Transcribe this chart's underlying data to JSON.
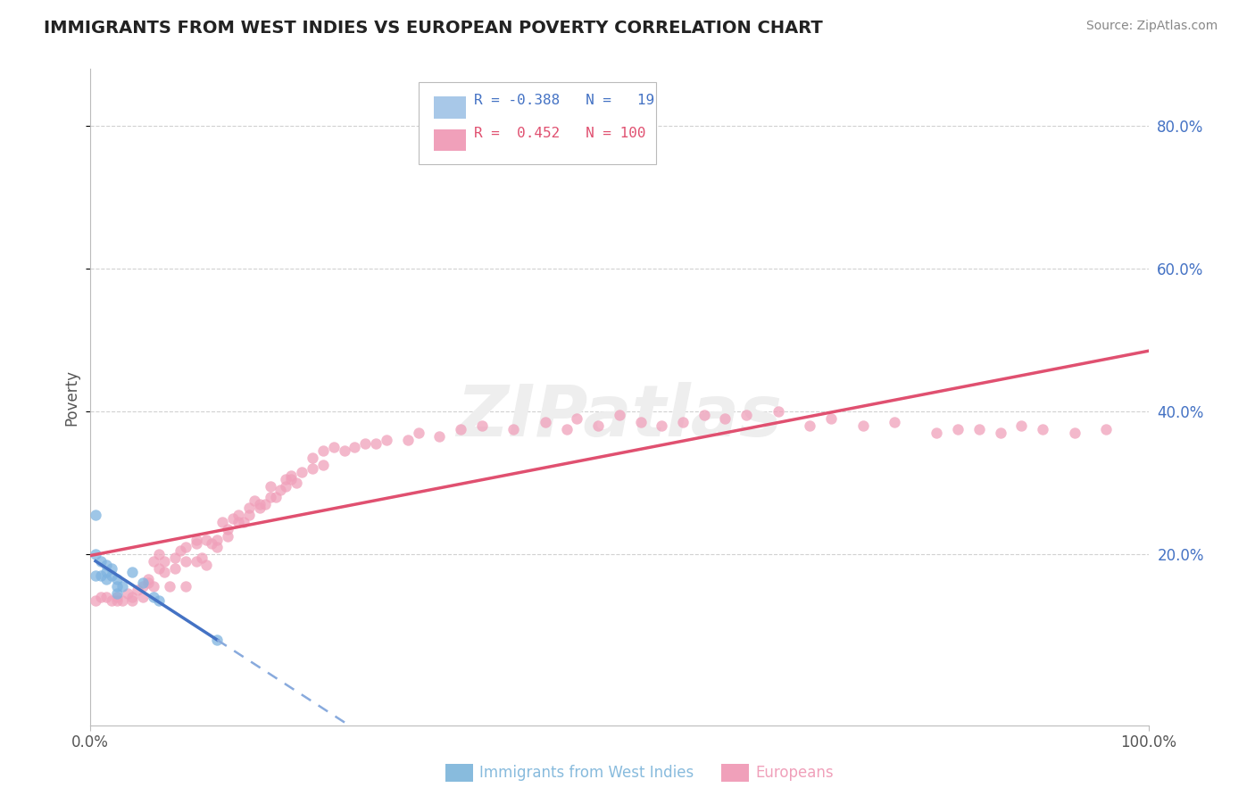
{
  "title": "IMMIGRANTS FROM WEST INDIES VS EUROPEAN POVERTY CORRELATION CHART",
  "source": "Source: ZipAtlas.com",
  "ylabel": "Poverty",
  "xlim": [
    0.0,
    1.0
  ],
  "ylim": [
    -0.04,
    0.88
  ],
  "xtick_positions": [
    0.0,
    1.0
  ],
  "xtick_labels": [
    "0.0%",
    "100.0%"
  ],
  "ytick_positions": [
    0.2,
    0.4,
    0.6,
    0.8
  ],
  "ytick_labels": [
    "20.0%",
    "40.0%",
    "60.0%",
    "80.0%"
  ],
  "background_color": "#ffffff",
  "grid_color": "#cccccc",
  "watermark_text": "ZIPatlas",
  "series1_name": "Immigrants from West Indies",
  "series1_color": "#7eb3e0",
  "series1_R": -0.388,
  "series1_N": 19,
  "series1_x": [
    0.005,
    0.005,
    0.005,
    0.01,
    0.01,
    0.015,
    0.015,
    0.015,
    0.02,
    0.02,
    0.025,
    0.025,
    0.025,
    0.03,
    0.04,
    0.05,
    0.06,
    0.065,
    0.12
  ],
  "series1_y": [
    0.255,
    0.2,
    0.17,
    0.19,
    0.17,
    0.185,
    0.175,
    0.165,
    0.18,
    0.17,
    0.165,
    0.155,
    0.145,
    0.155,
    0.175,
    0.16,
    0.14,
    0.135,
    0.08
  ],
  "series2_name": "Europeans",
  "series2_color": "#f0a0ba",
  "series2_R": 0.452,
  "series2_N": 100,
  "series2_x": [
    0.005,
    0.01,
    0.015,
    0.02,
    0.025,
    0.025,
    0.03,
    0.035,
    0.04,
    0.04,
    0.045,
    0.05,
    0.05,
    0.055,
    0.055,
    0.06,
    0.06,
    0.065,
    0.065,
    0.07,
    0.07,
    0.075,
    0.08,
    0.08,
    0.085,
    0.09,
    0.09,
    0.09,
    0.1,
    0.1,
    0.1,
    0.105,
    0.11,
    0.11,
    0.115,
    0.12,
    0.12,
    0.125,
    0.13,
    0.13,
    0.135,
    0.14,
    0.14,
    0.145,
    0.15,
    0.15,
    0.155,
    0.16,
    0.16,
    0.165,
    0.17,
    0.17,
    0.175,
    0.18,
    0.185,
    0.185,
    0.19,
    0.19,
    0.195,
    0.2,
    0.21,
    0.21,
    0.22,
    0.22,
    0.23,
    0.24,
    0.25,
    0.26,
    0.27,
    0.28,
    0.3,
    0.31,
    0.33,
    0.35,
    0.37,
    0.4,
    0.43,
    0.45,
    0.46,
    0.48,
    0.5,
    0.52,
    0.54,
    0.56,
    0.58,
    0.6,
    0.62,
    0.65,
    0.68,
    0.7,
    0.73,
    0.76,
    0.8,
    0.82,
    0.84,
    0.86,
    0.88,
    0.9,
    0.93,
    0.96
  ],
  "series2_y": [
    0.135,
    0.14,
    0.14,
    0.135,
    0.14,
    0.135,
    0.135,
    0.145,
    0.135,
    0.14,
    0.15,
    0.14,
    0.155,
    0.165,
    0.16,
    0.155,
    0.19,
    0.18,
    0.2,
    0.175,
    0.19,
    0.155,
    0.18,
    0.195,
    0.205,
    0.19,
    0.155,
    0.21,
    0.19,
    0.22,
    0.215,
    0.195,
    0.185,
    0.22,
    0.215,
    0.22,
    0.21,
    0.245,
    0.225,
    0.235,
    0.25,
    0.245,
    0.255,
    0.245,
    0.255,
    0.265,
    0.275,
    0.27,
    0.265,
    0.27,
    0.28,
    0.295,
    0.28,
    0.29,
    0.305,
    0.295,
    0.305,
    0.31,
    0.3,
    0.315,
    0.32,
    0.335,
    0.325,
    0.345,
    0.35,
    0.345,
    0.35,
    0.355,
    0.355,
    0.36,
    0.36,
    0.37,
    0.365,
    0.375,
    0.38,
    0.375,
    0.385,
    0.375,
    0.39,
    0.38,
    0.395,
    0.385,
    0.38,
    0.385,
    0.395,
    0.39,
    0.395,
    0.4,
    0.38,
    0.39,
    0.38,
    0.385,
    0.37,
    0.375,
    0.375,
    0.37,
    0.38,
    0.375,
    0.37,
    0.375
  ],
  "line1_color": "#4472c4",
  "line1_dash_color": "#88aadd",
  "line2_color": "#e05070",
  "legend_box_color1": "#a8c8e8",
  "legend_box_color2": "#f0a0ba",
  "legend_text_color1": "#4472c4",
  "legend_text_color2": "#e05070",
  "legend_R1": "-0.388",
  "legend_N1": "19",
  "legend_R2": "0.452",
  "legend_N2": "100",
  "bottom_legend_color1": "#88bbdd",
  "bottom_legend_color2": "#f0a0ba",
  "right_axis_color": "#4472c4"
}
